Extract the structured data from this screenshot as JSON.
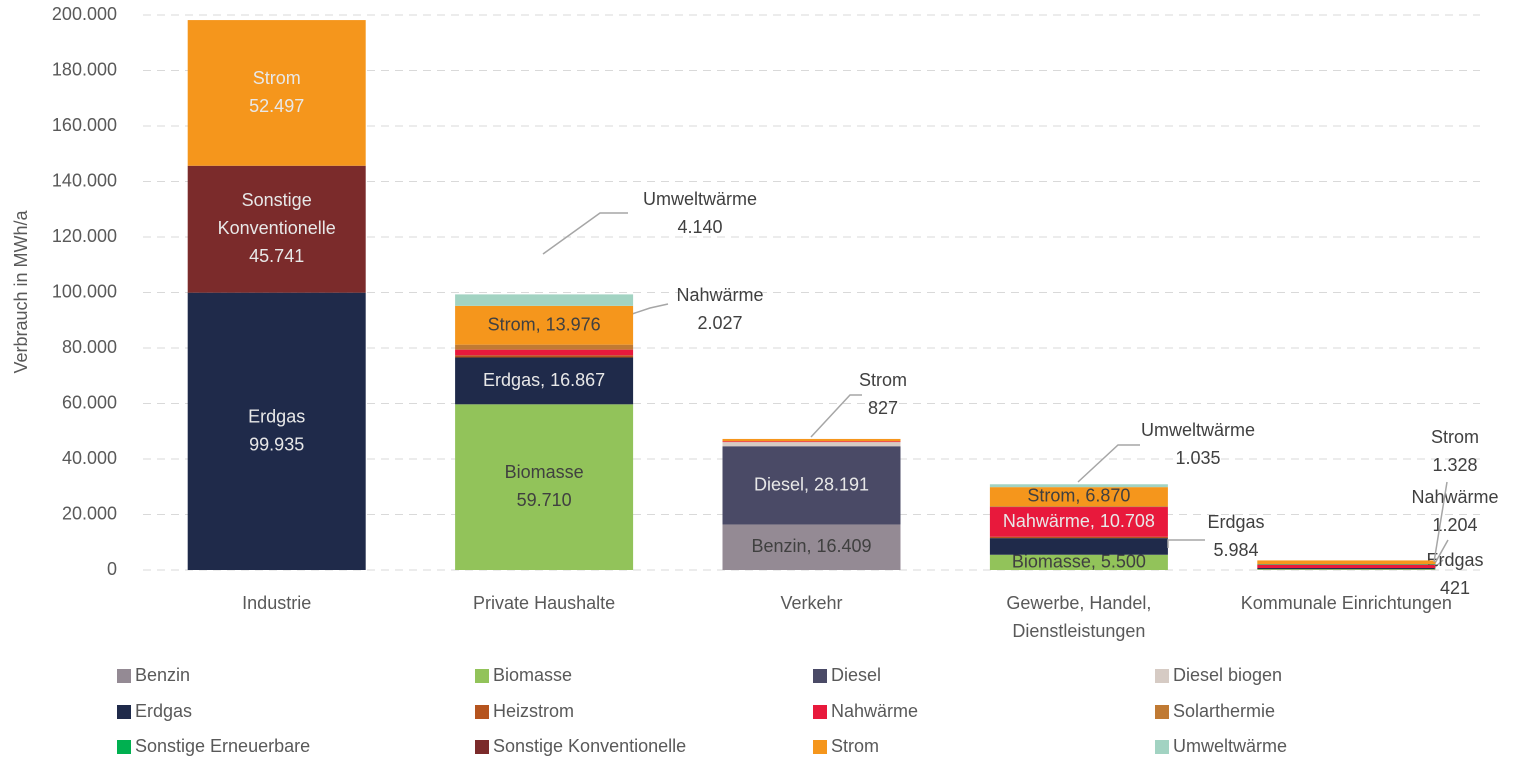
{
  "chart_data": {
    "type": "stacked_bar",
    "y_label": "Verbrauch in MWh/a",
    "categories": [
      "Industrie",
      "Private Haushalte",
      "Verkehr",
      "Gewerbe, Handel,\nDienstleistungen",
      "Kommunale Einrichtungen"
    ],
    "series": [
      {
        "name": "Benzin",
        "color": "#948a94",
        "values": [
          null,
          null,
          16409,
          null,
          null
        ],
        "value_labels": [
          null,
          null,
          "Benzin, 16.409",
          null,
          null
        ]
      },
      {
        "name": "Biomasse",
        "color": "#92c35a",
        "values": [
          null,
          59710,
          null,
          5500,
          300
        ],
        "value_labels": [
          null,
          "Biomasse\n59.710",
          null,
          "Biomasse, 5.500",
          null
        ]
      },
      {
        "name": "Diesel",
        "color": "#4a4a66",
        "values": [
          null,
          null,
          28191,
          null,
          null
        ],
        "value_labels": [
          null,
          null,
          "Diesel, 28.191",
          null,
          null
        ]
      },
      {
        "name": "Diesel biogen",
        "color": "#d6cbc4",
        "values": [
          null,
          null,
          1500,
          null,
          null
        ],
        "value_labels": [
          null,
          null,
          null,
          null,
          null
        ]
      },
      {
        "name": "Erdgas",
        "color": "#1f2a4a",
        "values": [
          99935,
          16867,
          null,
          5984,
          421
        ],
        "value_labels": [
          "Erdgas\n99.935",
          "Erdgas, 16.867",
          null,
          "Erdgas\n5.984",
          "Erdgas\n421"
        ]
      },
      {
        "name": "Heizstrom",
        "color": "#b5541e",
        "values": [
          null,
          800,
          null,
          500,
          null
        ],
        "value_labels": [
          null,
          null,
          null,
          null,
          null
        ]
      },
      {
        "name": "Nahwärme",
        "color": "#e8193c",
        "values": [
          null,
          2027,
          300,
          10708,
          1204
        ],
        "value_labels": [
          null,
          "Nahwärme\n2.027",
          null,
          "Nahwärme, 10.708",
          "Nahwärme\n1.204"
        ]
      },
      {
        "name": "Solarthermie",
        "color": "#c07a33",
        "values": [
          null,
          1800,
          null,
          300,
          null
        ],
        "value_labels": [
          null,
          null,
          null,
          null,
          null
        ]
      },
      {
        "name": "Sonstige Erneuerbare",
        "color": "#00b050",
        "values": [
          null,
          null,
          null,
          null,
          200
        ],
        "value_labels": [
          null,
          null,
          null,
          null,
          null
        ]
      },
      {
        "name": "Sonstige Konventionelle",
        "color": "#7b2b2b",
        "values": [
          45741,
          null,
          null,
          null,
          null
        ],
        "value_labels": [
          "Sonstige\nKonventionelle\n45.741",
          null,
          null,
          null,
          null
        ]
      },
      {
        "name": "Strom",
        "color": "#f5961c",
        "values": [
          52497,
          13976,
          827,
          6870,
          1328
        ],
        "value_labels": [
          "Strom\n52.497",
          "Strom, 13.976",
          "Strom\n827",
          "Strom, 6.870",
          "Strom\n1.328"
        ]
      },
      {
        "name": "Umweltwärme",
        "color": "#a2d3c2",
        "values": [
          null,
          4140,
          null,
          1035,
          null
        ],
        "value_labels": [
          null,
          "Umweltwärme\n4.140",
          null,
          "Umweltwärme\n1.035",
          null
        ]
      }
    ],
    "ylim": [
      0,
      200000
    ],
    "yticks": [
      0,
      {
        "value": 20000,
        "label": "20.000"
      },
      {
        "value": 40000,
        "label": "40.000"
      },
      {
        "value": 60000,
        "label": "60.000"
      },
      {
        "value": 80000,
        "label": "80.000"
      },
      {
        "value": 100000,
        "label": "100.000"
      },
      {
        "value": 120000,
        "label": "120.000"
      },
      {
        "value": 140000,
        "label": "140.000"
      },
      {
        "value": 160000,
        "label": "160.000"
      },
      {
        "value": 180000,
        "label": "180.000"
      },
      {
        "value": 200000,
        "label": "200.000"
      }
    ],
    "grid": true,
    "legend": "bottom"
  }
}
